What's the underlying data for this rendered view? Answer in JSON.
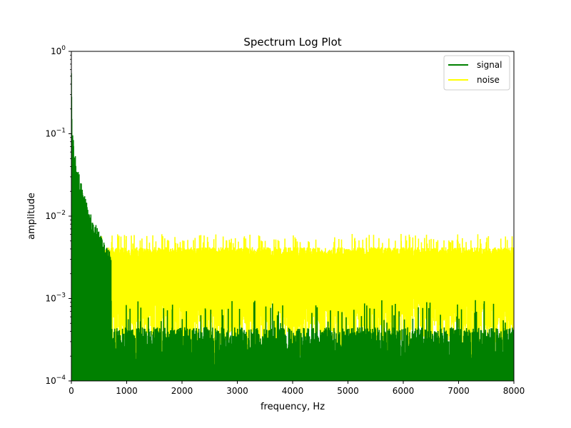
{
  "colors": {
    "signal": "#008000",
    "noise": "#ffff00",
    "axis": "#000000",
    "background": "#ffffff"
  },
  "chart_data": {
    "type": "line",
    "title": "Spectrum Log Plot",
    "xlabel": "frequency, Hz",
    "ylabel": "amplitude",
    "xlim": [
      0,
      8000
    ],
    "ylim": [
      0.0001,
      1
    ],
    "yscale": "log",
    "grid": false,
    "legend_position": "top-right",
    "xticks": [
      {
        "value": 0,
        "label": "0"
      },
      {
        "value": 1000,
        "label": "1000"
      },
      {
        "value": 2000,
        "label": "2000"
      },
      {
        "value": 3000,
        "label": "3000"
      },
      {
        "value": 4000,
        "label": "4000"
      },
      {
        "value": 5000,
        "label": "5000"
      },
      {
        "value": 6000,
        "label": "6000"
      },
      {
        "value": 7000,
        "label": "7000"
      },
      {
        "value": 8000,
        "label": "8000"
      }
    ],
    "yticks": [
      {
        "value": 0.0001,
        "base": "10",
        "exp": "−4"
      },
      {
        "value": 0.001,
        "base": "10",
        "exp": "−3"
      },
      {
        "value": 0.01,
        "base": "10",
        "exp": "−2"
      },
      {
        "value": 0.1,
        "base": "10",
        "exp": "−1"
      },
      {
        "value": 1,
        "base": "10",
        "exp": "0"
      }
    ],
    "series": [
      {
        "name": "signal",
        "color": "#008000",
        "description_values": {
          "envelope_x": [
            0,
            10,
            30,
            60,
            100,
            150,
            200,
            300,
            400,
            500,
            600,
            700
          ],
          "envelope_y": [
            0.7,
            0.13,
            0.1,
            0.07,
            0.045,
            0.03,
            0.022,
            0.013,
            0.009,
            0.0065,
            0.0048,
            0.0038
          ],
          "floor_typical": 0.0003,
          "floor_peak": 0.0008
        }
      },
      {
        "name": "noise",
        "color": "#ffff00",
        "description_values": {
          "typical_high": 0.004,
          "peak_high": 0.0058,
          "typical_low": 0.0007,
          "min": 0.0001
        }
      }
    ]
  }
}
